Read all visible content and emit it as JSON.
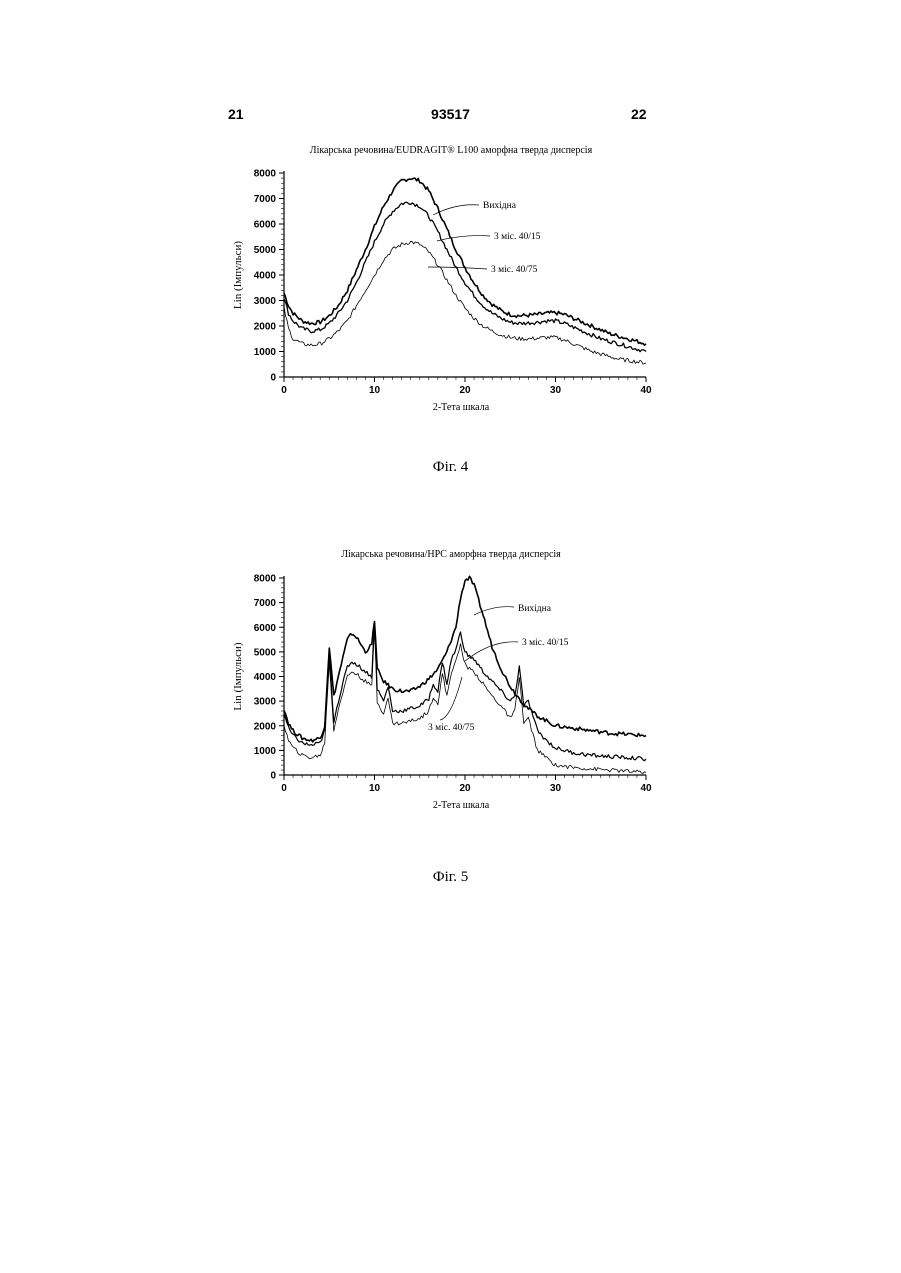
{
  "header": {
    "left_page": "21",
    "doc_number": "93517",
    "right_page": "22"
  },
  "figures": [
    {
      "caption": "Фіг. 4"
    },
    {
      "caption": "Фіг. 5"
    }
  ],
  "chart_data": [
    {
      "type": "line",
      "title": "Лікарська речовина/EUDRAGIT® L100 аморфна тверда дисперсія",
      "xlabel": "2-Тета шкала",
      "ylabel": "Lin (Імпульси)",
      "xlim": [
        0,
        40
      ],
      "ylim": [
        0,
        8000
      ],
      "xticks": [
        "0",
        "10",
        "20",
        "30",
        "40"
      ],
      "yticks": [
        "0",
        "1000",
        "2000",
        "3000",
        "4000",
        "5000",
        "6000",
        "7000",
        "8000"
      ],
      "grid": false,
      "series": [
        {
          "name": "Вихідна",
          "style": "heavy",
          "x": [
            0,
            0.5,
            1,
            2,
            3,
            4,
            5,
            6,
            7,
            8,
            9,
            10,
            11,
            12,
            13,
            14,
            15,
            16,
            17,
            18,
            19,
            20,
            21,
            22,
            23,
            24,
            25,
            26,
            27,
            28,
            29,
            30,
            31,
            32,
            33,
            34,
            35,
            36,
            37,
            38,
            39,
            40
          ],
          "y": [
            3300,
            2800,
            2500,
            2200,
            2100,
            2150,
            2400,
            2800,
            3400,
            4200,
            5000,
            5900,
            6700,
            7300,
            7700,
            7800,
            7700,
            7300,
            6600,
            5800,
            5000,
            4300,
            3700,
            3200,
            2850,
            2600,
            2450,
            2400,
            2420,
            2450,
            2500,
            2520,
            2450,
            2300,
            2150,
            2000,
            1850,
            1700,
            1600,
            1500,
            1400,
            1300
          ]
        },
        {
          "name": "3 міс. 40/15",
          "style": "medium",
          "x": [
            0,
            0.5,
            1,
            2,
            3,
            4,
            5,
            6,
            7,
            8,
            9,
            10,
            11,
            12,
            13,
            14,
            15,
            16,
            17,
            18,
            19,
            20,
            21,
            22,
            23,
            24,
            25,
            26,
            27,
            28,
            29,
            30,
            31,
            32,
            33,
            34,
            35,
            36,
            37,
            38,
            39,
            40
          ],
          "y": [
            3100,
            2500,
            2200,
            1900,
            1800,
            1850,
            2100,
            2500,
            3000,
            3700,
            4500,
            5300,
            6000,
            6500,
            6800,
            6850,
            6700,
            6300,
            5700,
            5000,
            4300,
            3700,
            3200,
            2800,
            2500,
            2300,
            2150,
            2100,
            2120,
            2150,
            2200,
            2200,
            2100,
            1950,
            1800,
            1650,
            1500,
            1400,
            1300,
            1200,
            1100,
            1000
          ]
        },
        {
          "name": "3 міс. 40/75",
          "style": "thin",
          "x": [
            0,
            0.5,
            1,
            2,
            3,
            4,
            5,
            6,
            7,
            8,
            9,
            10,
            11,
            12,
            13,
            14,
            15,
            16,
            17,
            18,
            19,
            20,
            21,
            22,
            23,
            24,
            25,
            26,
            27,
            28,
            29,
            30,
            31,
            32,
            33,
            34,
            35,
            36,
            37,
            38,
            39,
            40
          ],
          "y": [
            2700,
            1900,
            1500,
            1300,
            1250,
            1300,
            1500,
            1800,
            2200,
            2800,
            3400,
            4000,
            4600,
            5000,
            5200,
            5300,
            5200,
            4900,
            4400,
            3800,
            3200,
            2700,
            2300,
            2000,
            1800,
            1650,
            1550,
            1500,
            1500,
            1520,
            1550,
            1550,
            1450,
            1300,
            1150,
            1000,
            900,
            800,
            700,
            650,
            600,
            550
          ]
        }
      ],
      "annotations": [
        {
          "label": "Вихідна",
          "series": 0
        },
        {
          "label": "3 міс. 40/15",
          "series": 1
        },
        {
          "label": "3 міс. 40/75",
          "series": 2
        }
      ]
    },
    {
      "type": "line",
      "title": "Лікарська речовина/HPC аморфна тверда дисперсія",
      "xlabel": "2-Тета шкала",
      "ylabel": "Lin (Імпульси)",
      "xlim": [
        0,
        40
      ],
      "ylim": [
        0,
        8000
      ],
      "xticks": [
        "0",
        "10",
        "20",
        "30",
        "40"
      ],
      "yticks": [
        "0",
        "1000",
        "2000",
        "3000",
        "4000",
        "5000",
        "6000",
        "7000",
        "8000"
      ],
      "grid": false,
      "series": [
        {
          "name": "Вихідна",
          "style": "heavy",
          "x": [
            0,
            0.5,
            1,
            2,
            3,
            4,
            4.5,
            5,
            5.5,
            6,
            7,
            7.5,
            8,
            9,
            9.7,
            10,
            10.3,
            11,
            12,
            13,
            14,
            15,
            16,
            17,
            18,
            19,
            19.5,
            20,
            20.5,
            21,
            22,
            23,
            24,
            25,
            26,
            27,
            28,
            29,
            30,
            32,
            34,
            36,
            38,
            40
          ],
          "y": [
            2700,
            2100,
            1800,
            1500,
            1400,
            1500,
            2000,
            5200,
            3200,
            4000,
            5500,
            5750,
            5600,
            5000,
            5300,
            6300,
            4300,
            3800,
            3500,
            3400,
            3400,
            3600,
            3900,
            4300,
            5000,
            6000,
            7200,
            7900,
            8000,
            7700,
            6500,
            5200,
            4300,
            3600,
            3100,
            2700,
            2400,
            2200,
            2000,
            1900,
            1800,
            1700,
            1650,
            1600
          ]
        },
        {
          "name": "3 міс. 40/15",
          "style": "medium",
          "x": [
            0,
            0.5,
            1,
            2,
            3,
            4,
            4.5,
            5,
            5.5,
            6,
            7,
            7.5,
            8,
            9,
            9.7,
            10,
            10.3,
            11,
            11.5,
            12,
            13,
            14,
            15,
            16,
            16.5,
            17,
            17.5,
            18,
            18.5,
            19,
            19.5,
            20,
            20.5,
            21,
            22,
            23,
            24,
            25,
            25.5,
            26,
            26.5,
            27,
            28,
            29,
            30,
            32,
            34,
            36,
            38,
            40
          ],
          "y": [
            2500,
            1900,
            1600,
            1300,
            1200,
            1300,
            1800,
            4800,
            2200,
            3000,
            4400,
            4600,
            4500,
            4200,
            4000,
            6200,
            3500,
            3000,
            3600,
            2600,
            2600,
            2700,
            2800,
            3100,
            3700,
            3400,
            4600,
            3700,
            4700,
            5100,
            5800,
            5000,
            4800,
            4700,
            4200,
            3800,
            3400,
            3000,
            3200,
            4400,
            2800,
            3000,
            1800,
            1400,
            1100,
            900,
            800,
            750,
            700,
            650
          ]
        },
        {
          "name": "3 міс. 40/75",
          "style": "thin",
          "x": [
            0,
            0.5,
            1,
            2,
            3,
            4,
            4.5,
            5,
            5.5,
            6,
            7,
            7.5,
            8,
            9,
            9.7,
            10,
            10.3,
            11,
            11.5,
            12,
            13,
            14,
            15,
            16,
            16.5,
            17,
            17.5,
            18,
            18.5,
            19,
            19.5,
            20,
            20.5,
            21,
            22,
            23,
            24,
            25,
            25.5,
            26,
            26.5,
            27,
            28,
            29,
            30,
            32,
            34,
            36,
            38,
            40
          ],
          "y": [
            2000,
            1400,
            1100,
            800,
            700,
            800,
            1300,
            4600,
            1800,
            2700,
            4000,
            4200,
            4100,
            3800,
            3600,
            6000,
            3000,
            2500,
            3100,
            2100,
            2100,
            2200,
            2300,
            2600,
            3200,
            2900,
            4100,
            3200,
            4200,
            4600,
            5300,
            4500,
            4300,
            4200,
            3700,
            3200,
            2800,
            2300,
            2600,
            4000,
            2100,
            2300,
            1000,
            700,
            400,
            300,
            250,
            200,
            150,
            100
          ]
        }
      ],
      "annotations": [
        {
          "label": "Вихідна",
          "series": 0
        },
        {
          "label": "3 міс. 40/15",
          "series": 1
        },
        {
          "label": "3 міс. 40/75",
          "series": 2
        }
      ]
    }
  ]
}
